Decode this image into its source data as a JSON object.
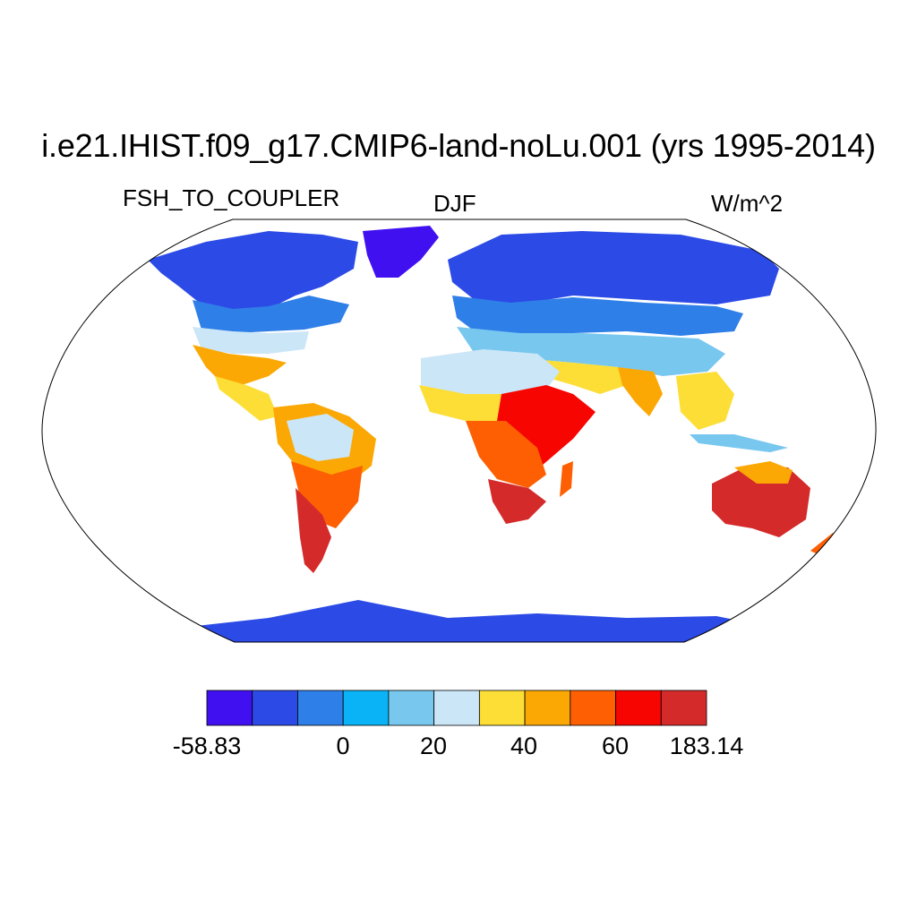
{
  "title": "i.e21.IHIST.f09_g17.CMIP6-land-noLu.001 (yrs 1995-2014)",
  "variable": "FSH_TO_COUPLER",
  "season": "DJF",
  "units": "W/m^2",
  "colorbar": {
    "colors": [
      "#4010f0",
      "#2c4ae6",
      "#2f7fe8",
      "#0ab3f6",
      "#78c7ee",
      "#cbe6f7",
      "#fcde37",
      "#fba805",
      "#fd5f02",
      "#f70501",
      "#d42a2a"
    ],
    "tick_labels": [
      "-58.83",
      "0",
      "20",
      "40",
      "60",
      "183.14"
    ]
  },
  "map": {
    "projection": "Robinson",
    "ocean_color": "#ffffff",
    "outline_color": "#000000"
  }
}
